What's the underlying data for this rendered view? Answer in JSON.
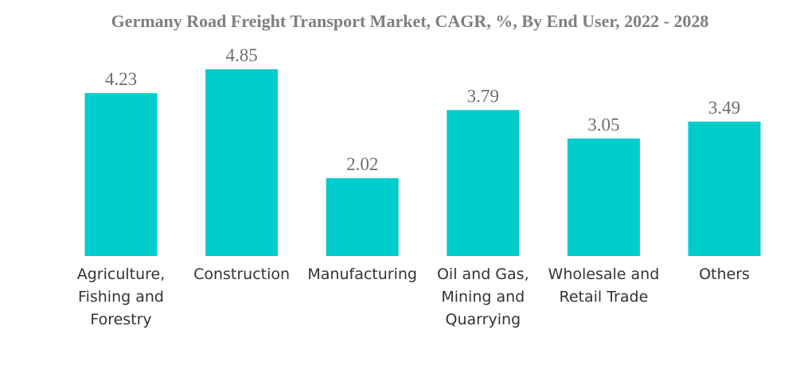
{
  "chart_data": {
    "type": "bar",
    "title": "Germany Road Freight Transport Market, CAGR, %, By End User, 2022 - 2028",
    "categories": [
      [
        "Agriculture,",
        "Fishing and",
        "Forestry"
      ],
      [
        "Construction"
      ],
      [
        "Manufacturing"
      ],
      [
        "Oil and Gas,",
        "Mining and",
        "Quarrying"
      ],
      [
        "Wholesale and",
        "Retail Trade"
      ],
      [
        "Others"
      ]
    ],
    "values": [
      4.23,
      4.85,
      2.02,
      3.79,
      3.05,
      3.49
    ],
    "value_labels": [
      "4.23",
      "4.85",
      "2.02",
      "3.79",
      "3.05",
      "3.49"
    ],
    "bar_color": "#00cccc",
    "ylim": [
      0,
      5.74
    ],
    "grid": false,
    "legend": "none"
  }
}
